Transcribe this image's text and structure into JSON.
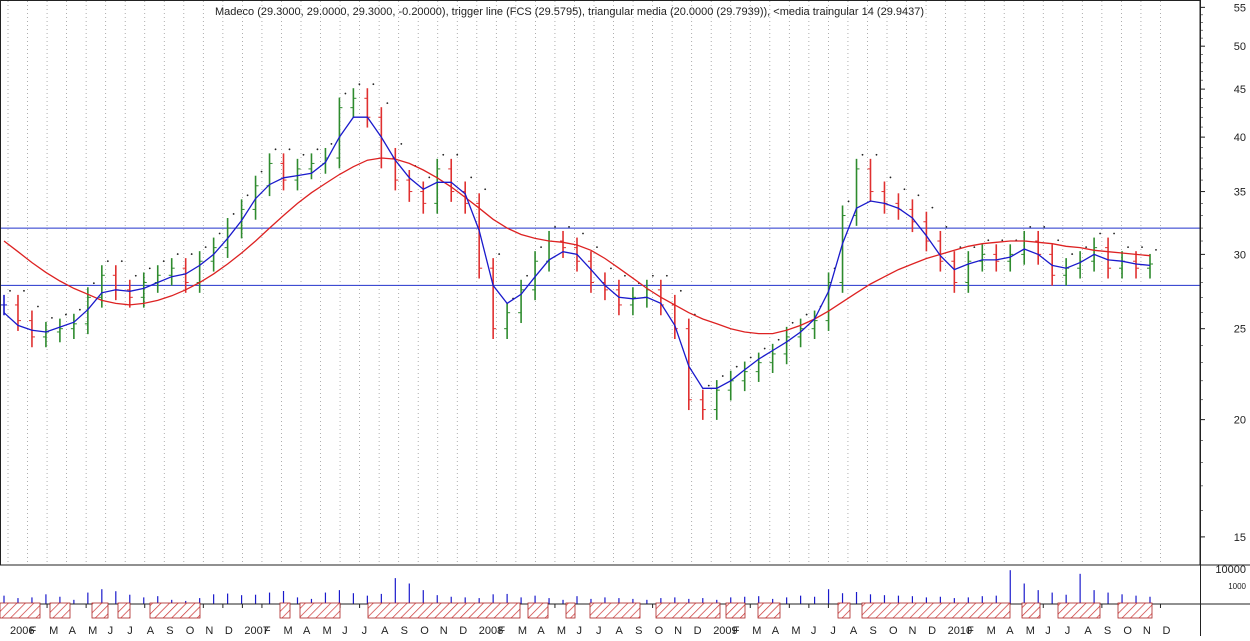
{
  "header": {
    "title": "Madeco (29.3000, 29.0000, 29.3000, -0.20000), trigger line (FCS (29.5795), triangular media (20.0000 (29.7939)), <media traingular 14 (29.9437)"
  },
  "colors": {
    "up_bar": "#2e8b2e",
    "down_bar": "#e03030",
    "neutral_bar": "#1a1acc",
    "long_ma": "#dd2222",
    "short_ma": "#1a1acc",
    "hlines": "#2233cc",
    "grid": "#9a9a9a",
    "hatch": "#cc3333"
  },
  "chart_data": [
    {
      "type": "line",
      "price_axis": {
        "scale": "log",
        "ylim": [
          14,
          56
        ],
        "ticks": [
          15,
          20,
          25,
          30,
          35,
          40,
          45,
          50,
          55
        ]
      },
      "x_labels": [
        "2006",
        "M",
        "M",
        "J",
        "A",
        "O",
        "D",
        "2007",
        "M",
        "M",
        "J",
        "A",
        "O",
        "D",
        "2008",
        "M",
        "M",
        "J",
        "A",
        "O",
        "D",
        "2009",
        "M",
        "M",
        "J",
        "A",
        "O",
        "D",
        "2010",
        "M",
        "M",
        "J",
        "A",
        "O",
        "D"
      ],
      "x_labels_all": [
        "2006",
        "F",
        "M",
        "A",
        "M",
        "J",
        "J",
        "A",
        "S",
        "O",
        "N",
        "D",
        "2007",
        "F",
        "M",
        "A",
        "M",
        "J",
        "J",
        "A",
        "S",
        "O",
        "N",
        "D",
        "2008",
        "F",
        "M",
        "A",
        "M",
        "J",
        "J",
        "A",
        "S",
        "O",
        "N",
        "D",
        "2009",
        "F",
        "M",
        "A",
        "M",
        "J",
        "J",
        "A",
        "S",
        "O",
        "N",
        "D",
        "2010",
        "F",
        "M",
        "A",
        "M",
        "J",
        "J",
        "A",
        "S",
        "O",
        "N",
        "D"
      ],
      "price_series": [
        26.5,
        25.5,
        24.5,
        24.8,
        25.0,
        25.3,
        27.0,
        28.5,
        27.5,
        27.0,
        28.0,
        28.5,
        29.0,
        28.0,
        29.5,
        30.5,
        32.0,
        33.5,
        35.5,
        37.5,
        36.0,
        37.0,
        37.5,
        38.0,
        43.0,
        44.0,
        42.0,
        38.0,
        36.0,
        35.0,
        34.0,
        37.0,
        35.0,
        34.0,
        29.0,
        25.0,
        26.0,
        27.5,
        29.5,
        31.0,
        30.5,
        29.5,
        28.0,
        27.5,
        26.5,
        27.0,
        27.5,
        26.5,
        25.0,
        21.0,
        20.5,
        21.5,
        22.0,
        22.5,
        23.0,
        23.5,
        24.5,
        25.0,
        25.5,
        28.0,
        33.0,
        37.0,
        35.0,
        34.0,
        33.5,
        32.5,
        31.0,
        29.5,
        28.0,
        29.5,
        30.0,
        29.5,
        30.0,
        31.0,
        30.0,
        28.5,
        29.0,
        29.5,
        30.5,
        29.0,
        29.5,
        29.0,
        29.3
      ],
      "short_ma": [
        26.0,
        25.2,
        24.9,
        24.8,
        25.1,
        25.4,
        26.2,
        27.3,
        27.5,
        27.4,
        27.6,
        28.0,
        28.4,
        28.6,
        29.2,
        30.0,
        31.2,
        32.6,
        34.4,
        35.6,
        36.2,
        36.4,
        36.6,
        37.6,
        40.0,
        42.0,
        42.0,
        40.0,
        37.8,
        36.2,
        35.2,
        35.8,
        35.8,
        34.8,
        31.8,
        27.8,
        26.6,
        27.2,
        28.4,
        29.6,
        30.2,
        30.0,
        28.9,
        27.8,
        27.0,
        26.9,
        27.0,
        26.6,
        25.2,
        22.8,
        21.6,
        21.6,
        22.0,
        22.6,
        23.2,
        23.7,
        24.2,
        24.8,
        25.6,
        27.4,
        30.8,
        33.6,
        34.2,
        34.0,
        33.6,
        32.8,
        31.4,
        29.9,
        28.9,
        29.3,
        29.6,
        29.6,
        29.8,
        30.4,
        30.0,
        29.2,
        29.0,
        29.4,
        30.0,
        29.6,
        29.5,
        29.3,
        29.2
      ],
      "long_ma": [
        31.0,
        30.2,
        29.4,
        28.7,
        28.1,
        27.6,
        27.2,
        26.8,
        26.6,
        26.5,
        26.6,
        26.8,
        27.1,
        27.5,
        28.0,
        28.6,
        29.3,
        30.1,
        31.0,
        32.0,
        33.0,
        34.0,
        34.9,
        35.7,
        36.5,
        37.2,
        37.8,
        38.0,
        37.9,
        37.5,
        36.9,
        36.2,
        35.4,
        34.5,
        33.6,
        32.7,
        32.0,
        31.5,
        31.2,
        31.0,
        30.9,
        30.7,
        30.3,
        29.7,
        29.0,
        28.3,
        27.6,
        27.0,
        26.5,
        26.0,
        25.6,
        25.3,
        25.0,
        24.8,
        24.7,
        24.7,
        24.9,
        25.2,
        25.6,
        26.1,
        26.7,
        27.3,
        27.9,
        28.4,
        28.9,
        29.3,
        29.7,
        30.0,
        30.3,
        30.6,
        30.8,
        30.9,
        31.0,
        31.0,
        30.9,
        30.8,
        30.6,
        30.5,
        30.3,
        30.2,
        30.1,
        30.0,
        29.9
      ],
      "hlines": [
        32.0,
        27.8
      ]
    },
    {
      "type": "bar",
      "volume_axis": {
        "ticks": [
          10000,
          1000
        ],
        "tick_labels": [
          "10000",
          "1000"
        ]
      },
      "volume_series": [
        120,
        80,
        90,
        150,
        100,
        60,
        200,
        350,
        250,
        140,
        90,
        110,
        60,
        50,
        80,
        150,
        170,
        130,
        140,
        200,
        260,
        90,
        70,
        200,
        300,
        180,
        120,
        160,
        2200,
        900,
        300,
        130,
        100,
        90,
        80,
        150,
        160,
        90,
        120,
        80,
        60,
        110,
        70,
        90,
        80,
        70,
        60,
        80,
        90,
        70,
        80,
        60,
        90,
        100,
        110,
        70,
        90,
        120,
        100,
        350,
        180,
        220,
        150,
        130,
        120,
        110,
        90,
        100,
        80,
        90,
        110,
        120,
        8200,
        900,
        300,
        200,
        140,
        4500,
        300,
        200,
        150,
        120,
        100
      ]
    }
  ]
}
